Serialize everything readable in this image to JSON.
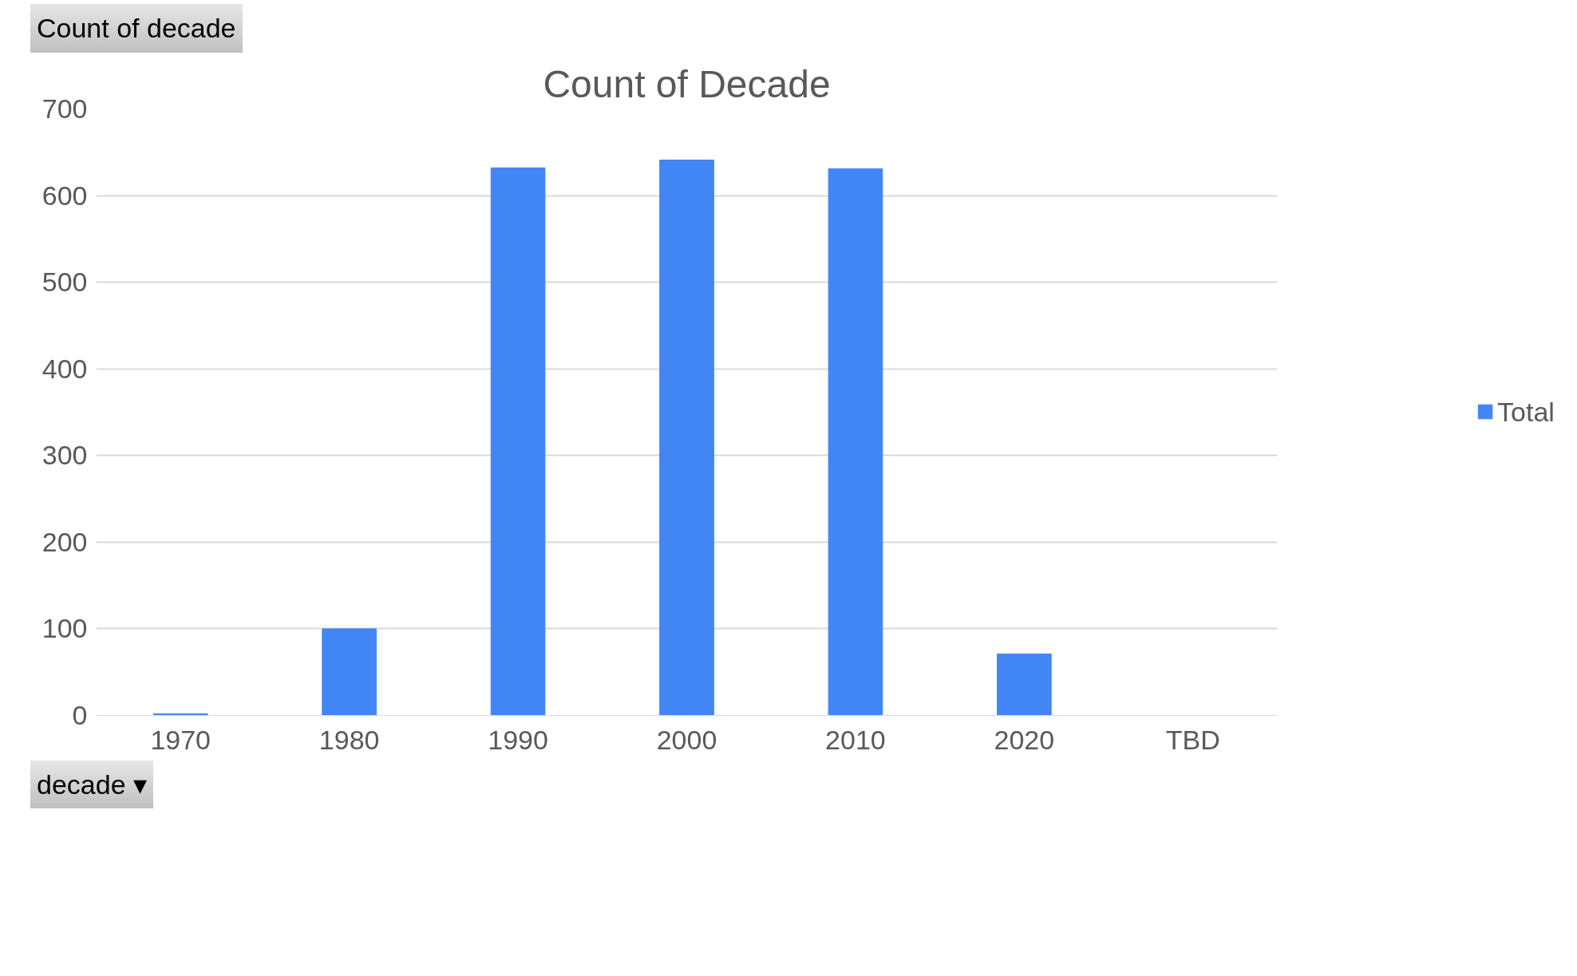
{
  "chart_data": {
    "type": "bar",
    "title": "Count of Decade",
    "categories": [
      "1970",
      "1980",
      "1990",
      "2000",
      "2010",
      "2020",
      "TBD"
    ],
    "series": [
      {
        "name": "Total",
        "color": "#4285f4",
        "values": [
          2,
          100,
          632,
          641,
          631,
          71,
          0
        ]
      }
    ],
    "ylim": [
      0,
      700
    ],
    "yticks": [
      0,
      100,
      200,
      300,
      400,
      500,
      600,
      700
    ],
    "grid": "y",
    "legend": "right",
    "annotations": [
      "Count of decade",
      "decade ▾"
    ]
  }
}
